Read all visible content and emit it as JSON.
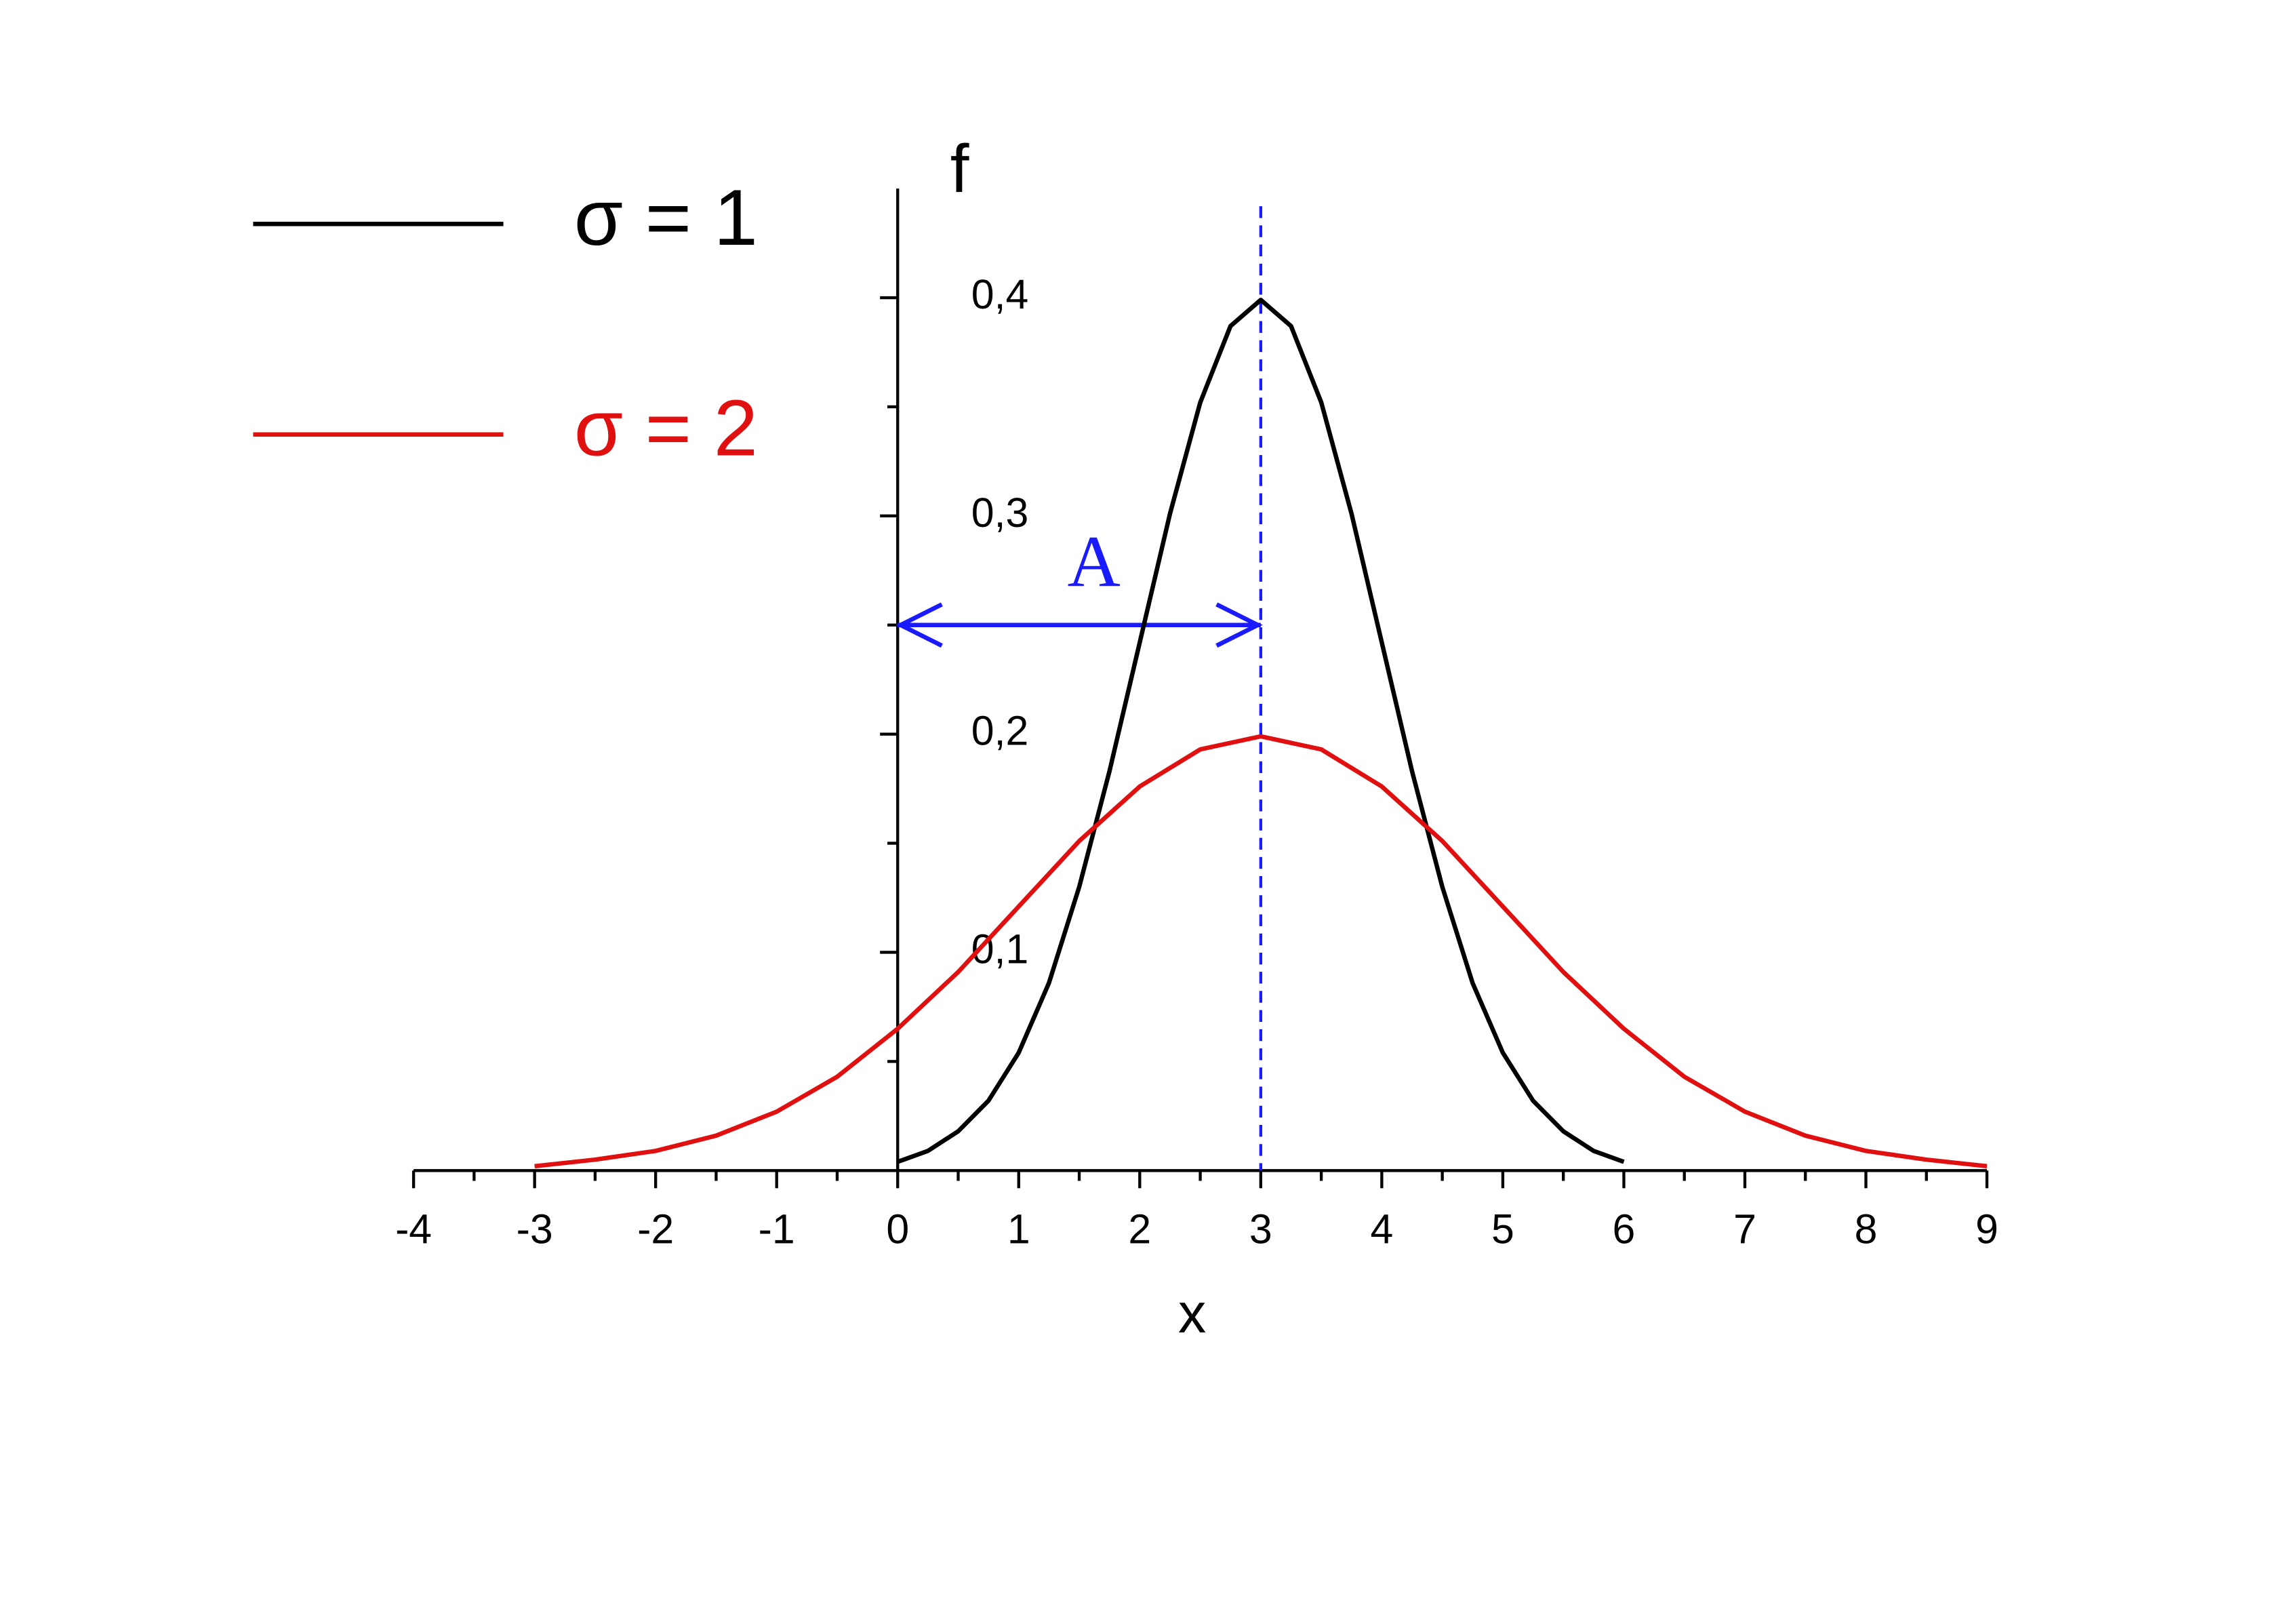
{
  "chart_data": {
    "type": "line",
    "x_label": "x",
    "y_label": "f",
    "xlim": [
      -4,
      9
    ],
    "ylim": [
      0,
      0.45
    ],
    "xticks": [
      -4,
      -3,
      -2,
      -1,
      0,
      1,
      2,
      3,
      4,
      5,
      6,
      7,
      8,
      9
    ],
    "xminor": [
      -3.5,
      -2.5,
      -1.5,
      -0.5,
      0.5,
      1.5,
      2.5,
      3.5,
      4.5,
      5.5,
      6.5,
      7.5,
      8.5
    ],
    "yticks": [
      {
        "value": 0.1,
        "label": "0,1"
      },
      {
        "value": 0.2,
        "label": "0,2"
      },
      {
        "value": 0.3,
        "label": "0,3"
      },
      {
        "value": 0.4,
        "label": "0,4"
      }
    ],
    "yminor": [
      0.05,
      0.15,
      0.25,
      0.35
    ],
    "grid": false,
    "legend": "top left",
    "series": [
      {
        "name": "σ = 1",
        "color": "#000000",
        "x": [
          0,
          0.25,
          0.5,
          0.75,
          1,
          1.25,
          1.5,
          1.75,
          2,
          2.25,
          2.5,
          2.75,
          3,
          3.25,
          3.5,
          3.75,
          4,
          4.25,
          4.5,
          4.75,
          5,
          5.25,
          5.5,
          5.75,
          6
        ],
        "values": [
          0.004,
          0.009,
          0.018,
          0.032,
          0.054,
          0.086,
          0.13,
          0.183,
          0.242,
          0.301,
          0.352,
          0.387,
          0.399,
          0.387,
          0.352,
          0.301,
          0.242,
          0.183,
          0.13,
          0.086,
          0.054,
          0.032,
          0.018,
          0.009,
          0.004
        ]
      },
      {
        "name": "σ = 2",
        "color": "#e01010",
        "x": [
          -3,
          -2.5,
          -2,
          -1.5,
          -1,
          -0.5,
          0,
          0.5,
          1,
          1.5,
          2,
          2.5,
          3,
          3.5,
          4,
          4.5,
          5,
          5.5,
          6,
          6.5,
          7,
          7.5,
          8,
          8.5,
          9
        ],
        "values": [
          0.002,
          0.005,
          0.009,
          0.016,
          0.027,
          0.043,
          0.065,
          0.091,
          0.121,
          0.151,
          0.176,
          0.193,
          0.199,
          0.193,
          0.176,
          0.151,
          0.121,
          0.091,
          0.065,
          0.043,
          0.027,
          0.016,
          0.009,
          0.005,
          0.002
        ]
      }
    ],
    "mean_line": {
      "x": 3,
      "color": "#1a1aff"
    },
    "arrow": {
      "label": "A",
      "x": [
        0,
        3
      ],
      "y": 0.25,
      "color": "#1a1aff"
    }
  }
}
